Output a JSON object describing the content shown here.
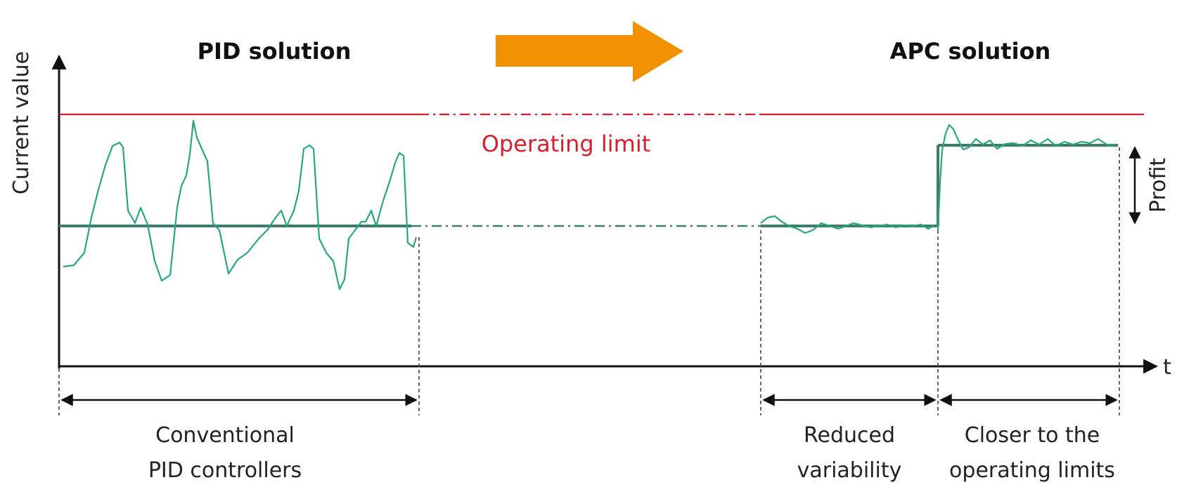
{
  "titles": {
    "left": "PID solution",
    "right": "APC solution"
  },
  "axes": {
    "y_label": "Current value",
    "x_label": "t"
  },
  "operating_limit": {
    "label": "Operating limit",
    "color": "#d81e2c"
  },
  "profit_label": "Profit",
  "annotations": {
    "conventional": [
      "Conventional",
      "PID controllers"
    ],
    "reduced": [
      "Reduced",
      "variability"
    ],
    "closer": [
      "Closer to the",
      "operating limits"
    ]
  },
  "colors": {
    "arrow": "#f29100",
    "signal": "#27a878",
    "setpoint": "#3d7c6d"
  }
}
